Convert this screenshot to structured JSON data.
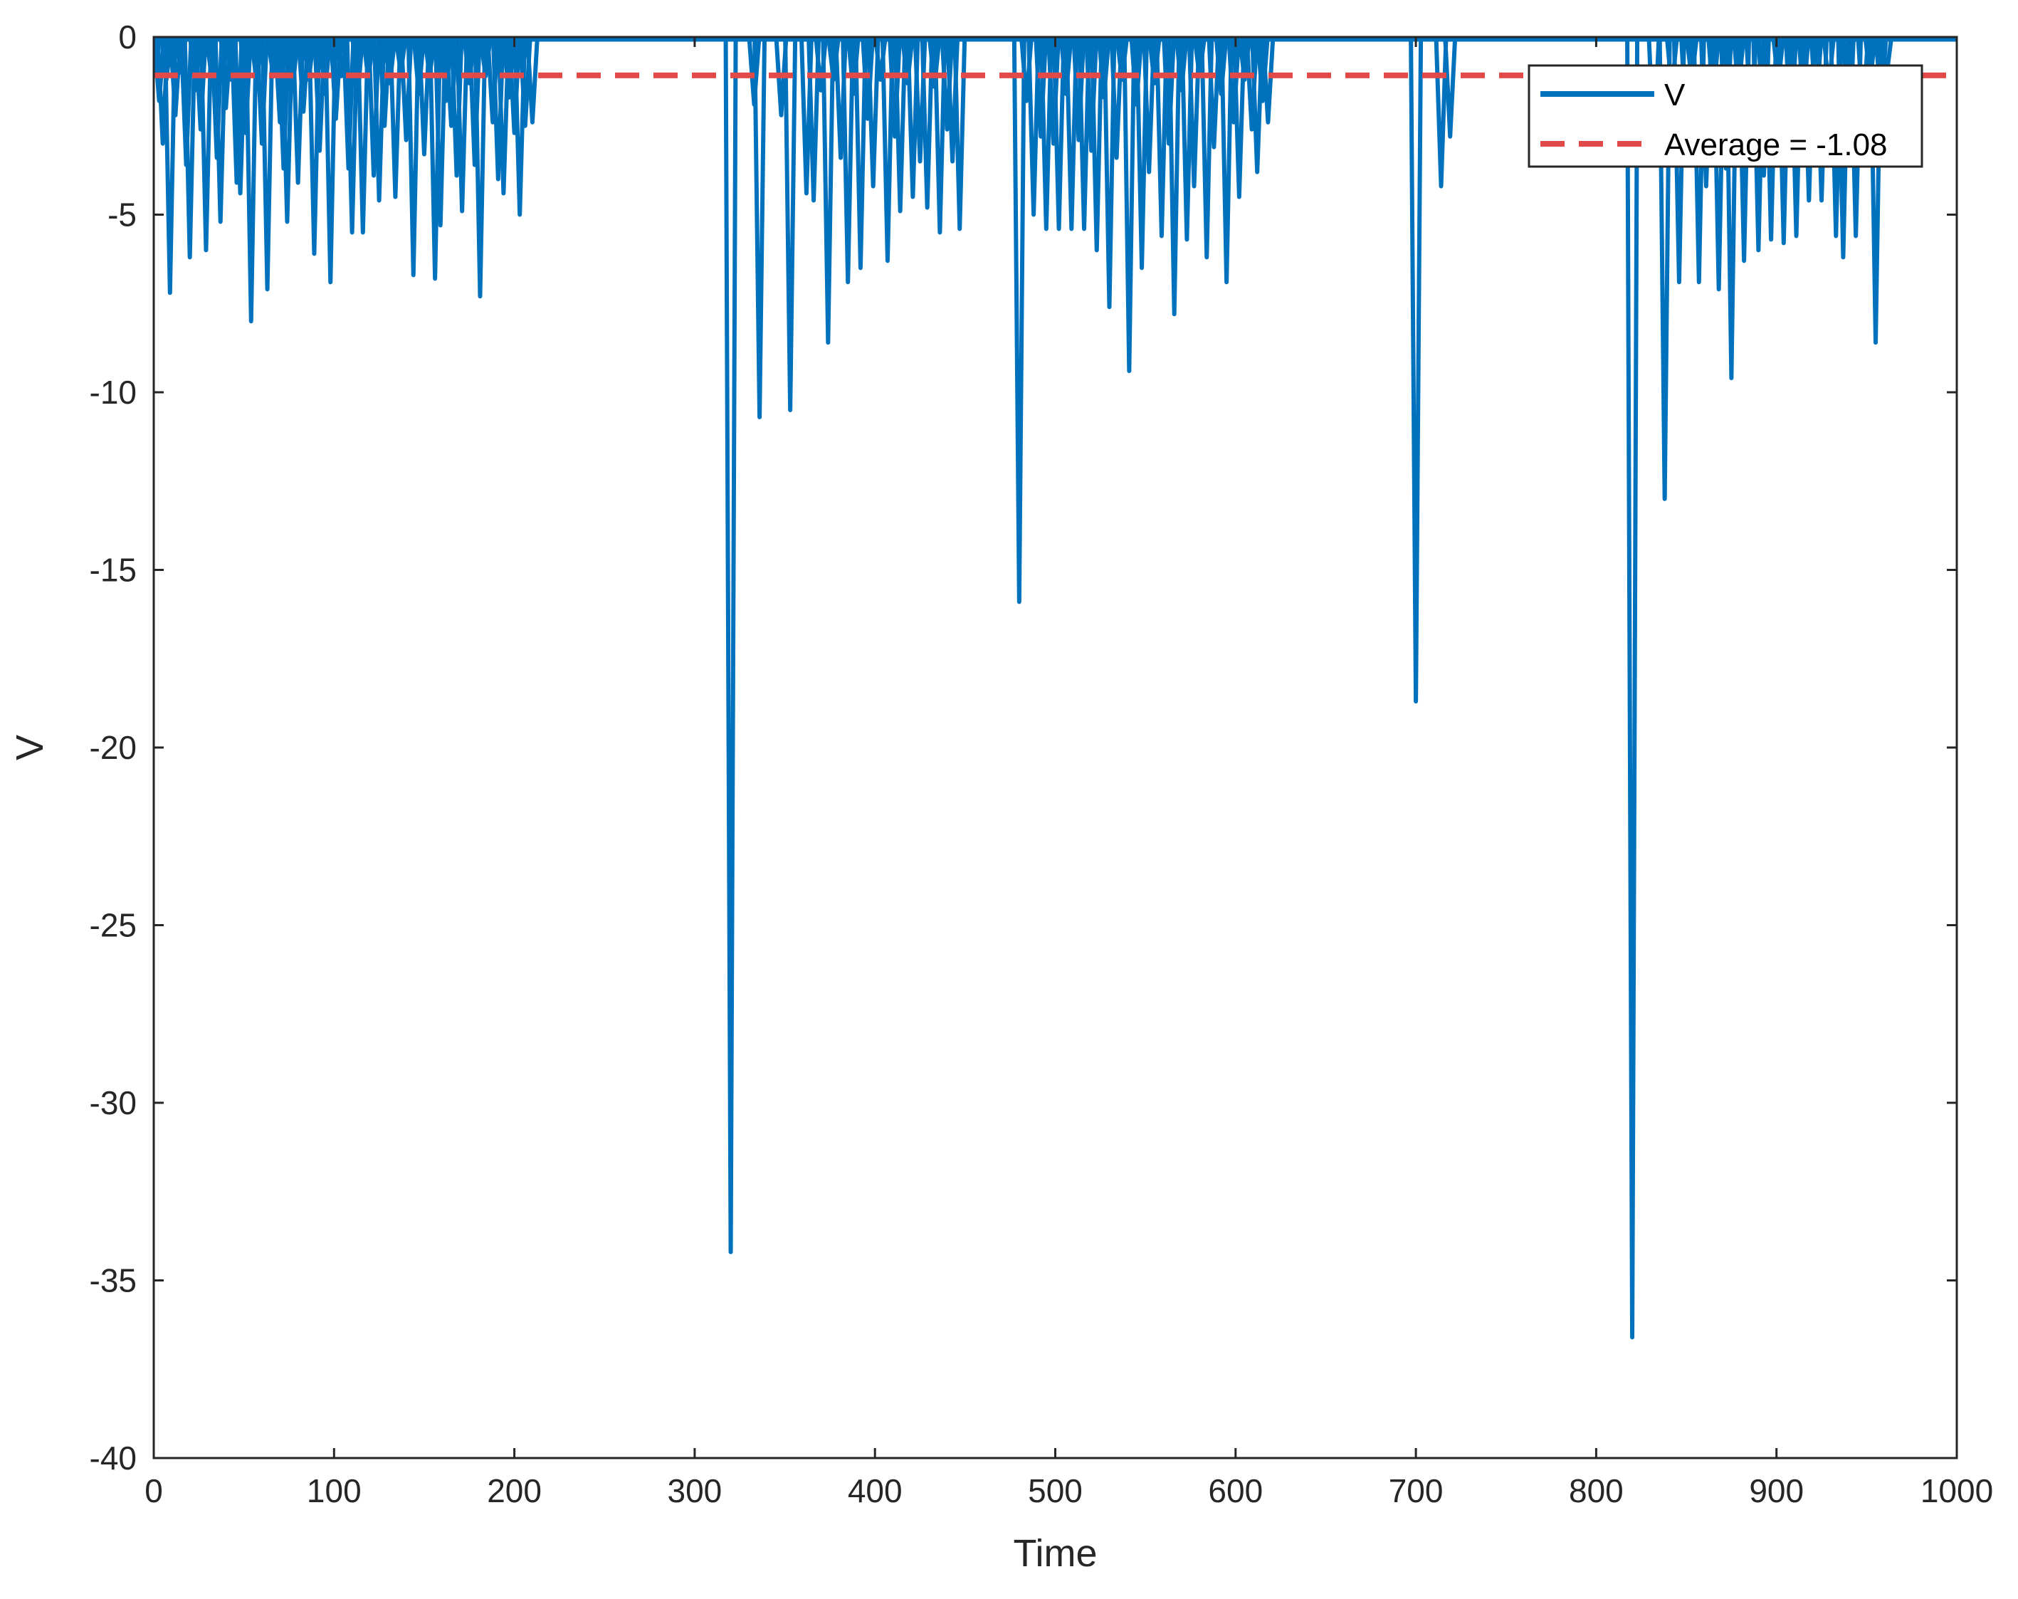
{
  "chart_data": {
    "type": "line",
    "title": "",
    "xlabel": "Time",
    "ylabel": "V",
    "xlim": [
      0,
      1000
    ],
    "ylim": [
      -40,
      0
    ],
    "xticks": [
      0,
      100,
      200,
      300,
      400,
      500,
      600,
      700,
      800,
      900,
      1000
    ],
    "yticks": [
      0,
      -5,
      -10,
      -15,
      -20,
      -25,
      -30,
      -35,
      -40
    ],
    "grid": false,
    "box": true,
    "legend": {
      "position": "top-right",
      "entries": [
        "V",
        "Average = -1.08"
      ]
    },
    "series": [
      {
        "name": "V",
        "style": "solid",
        "color": "#0072BD",
        "baseline": 0,
        "spikes": [
          [
            3,
            -1.8
          ],
          [
            5,
            -3.0
          ],
          [
            7,
            -1.2
          ],
          [
            9,
            -7.2
          ],
          [
            12,
            -2.2
          ],
          [
            15,
            -1.0
          ],
          [
            18,
            -3.6
          ],
          [
            20,
            -6.2
          ],
          [
            23,
            -1.5
          ],
          [
            26,
            -2.6
          ],
          [
            29,
            -6.0
          ],
          [
            32,
            -1.1
          ],
          [
            35,
            -3.4
          ],
          [
            37,
            -5.2
          ],
          [
            40,
            -2.0
          ],
          [
            43,
            -1.2
          ],
          [
            46,
            -4.1
          ],
          [
            48,
            -4.4
          ],
          [
            51,
            -2.7
          ],
          [
            54,
            -8.0
          ],
          [
            57,
            -1.3
          ],
          [
            60,
            -3.0
          ],
          [
            63,
            -7.1
          ],
          [
            66,
            -1.0
          ],
          [
            70,
            -2.4
          ],
          [
            72,
            -3.7
          ],
          [
            74,
            -5.2
          ],
          [
            77,
            -1.5
          ],
          [
            80,
            -4.1
          ],
          [
            83,
            -2.1
          ],
          [
            86,
            -1.2
          ],
          [
            89,
            -6.1
          ],
          [
            92,
            -3.2
          ],
          [
            95,
            -1.6
          ],
          [
            98,
            -6.9
          ],
          [
            101,
            -2.3
          ],
          [
            104,
            -1.1
          ],
          [
            108,
            -3.7
          ],
          [
            110,
            -5.5
          ],
          [
            113,
            -1.8
          ],
          [
            116,
            -5.5
          ],
          [
            119,
            -1.2
          ],
          [
            122,
            -3.9
          ],
          [
            125,
            -4.6
          ],
          [
            128,
            -2.5
          ],
          [
            131,
            -1.3
          ],
          [
            134,
            -4.5
          ],
          [
            137,
            -1.0
          ],
          [
            140,
            -2.9
          ],
          [
            144,
            -6.7
          ],
          [
            147,
            -1.6
          ],
          [
            150,
            -3.3
          ],
          [
            153,
            -1.1
          ],
          [
            156,
            -6.8
          ],
          [
            159,
            -5.3
          ],
          [
            162,
            -1.8
          ],
          [
            165,
            -2.5
          ],
          [
            168,
            -3.9
          ],
          [
            171,
            -4.9
          ],
          [
            175,
            -1.3
          ],
          [
            178,
            -3.6
          ],
          [
            181,
            -7.3
          ],
          [
            184,
            -1.1
          ],
          [
            188,
            -2.4
          ],
          [
            191,
            -4.0
          ],
          [
            194,
            -4.4
          ],
          [
            197,
            -1.7
          ],
          [
            200,
            -2.7
          ],
          [
            203,
            -5.0
          ],
          [
            206,
            -2.5
          ],
          [
            210,
            -2.4
          ],
          [
            320,
            -34.2
          ],
          [
            333,
            -1.9
          ],
          [
            336,
            -10.7
          ],
          [
            348,
            -2.2
          ],
          [
            353,
            -10.5
          ],
          [
            362,
            -4.4
          ],
          [
            366,
            -4.6
          ],
          [
            370,
            -1.5
          ],
          [
            374,
            -8.6
          ],
          [
            377,
            -1.2
          ],
          [
            381,
            -3.4
          ],
          [
            385,
            -6.9
          ],
          [
            388,
            -1.6
          ],
          [
            392,
            -6.5
          ],
          [
            396,
            -2.3
          ],
          [
            399,
            -4.2
          ],
          [
            403,
            -1.2
          ],
          [
            407,
            -6.3
          ],
          [
            411,
            -2.8
          ],
          [
            414,
            -4.9
          ],
          [
            418,
            -1.3
          ],
          [
            421,
            -4.5
          ],
          [
            425,
            -3.5
          ],
          [
            429,
            -4.8
          ],
          [
            433,
            -1.4
          ],
          [
            436,
            -5.5
          ],
          [
            440,
            -2.6
          ],
          [
            443,
            -3.5
          ],
          [
            447,
            -5.4
          ],
          [
            480,
            -15.9
          ],
          [
            484,
            -1.8
          ],
          [
            488,
            -5.0
          ],
          [
            492,
            -2.8
          ],
          [
            495,
            -5.4
          ],
          [
            499,
            -3.0
          ],
          [
            502,
            -5.4
          ],
          [
            506,
            -1.6
          ],
          [
            509,
            -5.4
          ],
          [
            513,
            -2.9
          ],
          [
            516,
            -5.4
          ],
          [
            520,
            -3.2
          ],
          [
            523,
            -6.0
          ],
          [
            527,
            -1.7
          ],
          [
            530,
            -7.6
          ],
          [
            534,
            -3.4
          ],
          [
            537,
            -1.2
          ],
          [
            541,
            -9.4
          ],
          [
            545,
            -1.9
          ],
          [
            548,
            -6.5
          ],
          [
            552,
            -3.8
          ],
          [
            555,
            -1.3
          ],
          [
            559,
            -5.6
          ],
          [
            563,
            -3.0
          ],
          [
            566,
            -7.8
          ],
          [
            570,
            -1.5
          ],
          [
            573,
            -5.7
          ],
          [
            577,
            -4.2
          ],
          [
            580,
            -1.1
          ],
          [
            584,
            -6.2
          ],
          [
            588,
            -3.1
          ],
          [
            592,
            -1.6
          ],
          [
            595,
            -6.9
          ],
          [
            599,
            -2.4
          ],
          [
            602,
            -4.5
          ],
          [
            605,
            -1.2
          ],
          [
            609,
            -2.6
          ],
          [
            612,
            -3.8
          ],
          [
            615,
            -1.8
          ],
          [
            618,
            -2.4
          ],
          [
            700,
            -18.7
          ],
          [
            714,
            -4.2
          ],
          [
            719,
            -2.8
          ],
          [
            820,
            -36.6
          ],
          [
            832,
            -3.2
          ],
          [
            838,
            -13.0
          ],
          [
            842,
            -1.5
          ],
          [
            846,
            -6.9
          ],
          [
            850,
            -2.8
          ],
          [
            853,
            -1.2
          ],
          [
            857,
            -6.9
          ],
          [
            861,
            -4.2
          ],
          [
            865,
            -1.8
          ],
          [
            868,
            -7.1
          ],
          [
            872,
            -3.7
          ],
          [
            875,
            -9.6
          ],
          [
            879,
            -1.5
          ],
          [
            882,
            -6.3
          ],
          [
            886,
            -2.5
          ],
          [
            890,
            -6.0
          ],
          [
            893,
            -3.9
          ],
          [
            897,
            -5.7
          ],
          [
            901,
            -1.3
          ],
          [
            904,
            -5.8
          ],
          [
            908,
            -3.0
          ],
          [
            911,
            -5.6
          ],
          [
            915,
            -1.7
          ],
          [
            918,
            -4.6
          ],
          [
            922,
            -2.1
          ],
          [
            925,
            -4.6
          ],
          [
            929,
            -1.4
          ],
          [
            933,
            -5.6
          ],
          [
            937,
            -6.2
          ],
          [
            940,
            -3.4
          ],
          [
            944,
            -5.6
          ],
          [
            948,
            -2.2
          ],
          [
            952,
            -1.2
          ],
          [
            955,
            -8.6
          ],
          [
            958,
            -2.0
          ],
          [
            961,
            -1.1
          ]
        ]
      },
      {
        "name": "Average = -1.08",
        "style": "dashed",
        "color": "#E24A4A",
        "value": -1.08
      }
    ]
  }
}
